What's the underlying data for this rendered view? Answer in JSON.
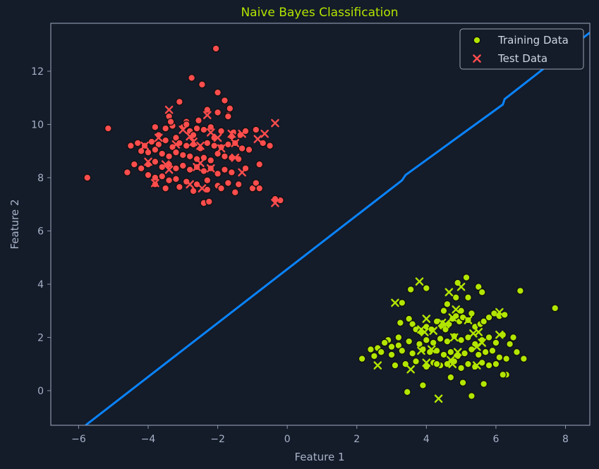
{
  "chart_data": {
    "type": "scatter",
    "title": "Naive Bayes Classification",
    "xlabel": "Feature 1",
    "ylabel": "Feature 2",
    "xlim": [
      -6.8,
      8.7
    ],
    "ylim": [
      -1.3,
      13.8
    ],
    "xticks": [
      "−6",
      "−4",
      "−2",
      "0",
      "2",
      "4",
      "6",
      "8"
    ],
    "xtick_values": [
      -6,
      -4,
      -2,
      0,
      2,
      4,
      6,
      8
    ],
    "yticks": [
      "0",
      "2",
      "4",
      "6",
      "8",
      "10",
      "12"
    ],
    "ytick_values": [
      0,
      2,
      4,
      6,
      8,
      10,
      12
    ],
    "grid": false,
    "legend_position": "top-right",
    "colors": {
      "background": "#141b29",
      "axes": "#8a96aa",
      "class_0": "#ff4d4d",
      "class_1": "#b2e600",
      "boundary": "#0a84ff"
    },
    "legend": [
      {
        "label": "Training Data",
        "marker": "circle"
      },
      {
        "label": "Test Data",
        "marker": "x"
      }
    ],
    "decision_boundary": {
      "x": [
        -5.8,
        3.3,
        3.4,
        6.2,
        6.25,
        8.7
      ],
      "y": [
        -1.3,
        7.9,
        8.1,
        10.75,
        10.95,
        13.45
      ]
    },
    "series": [
      {
        "name": "Training Data",
        "class": 0,
        "marker": "circle",
        "x": [
          -5.75,
          -5.15,
          -2.05,
          -2.75,
          -2.45,
          -2.0,
          -1.8,
          -3.1,
          -1.65,
          -3.4,
          -2.3,
          -2.0,
          -1.7,
          -2.9,
          -2.55,
          -3.8,
          -3.5,
          -3.3,
          -3.0,
          -2.8,
          -2.6,
          -2.4,
          -2.2,
          -1.9,
          -1.55,
          -1.35,
          -1.2,
          -3.7,
          -3.2,
          -2.7,
          -2.1,
          -1.6,
          -4.3,
          -4.1,
          -3.9,
          -3.7,
          -3.5,
          -3.3,
          -3.1,
          -2.9,
          -2.7,
          -2.5,
          -2.3,
          -2.1,
          -1.9,
          -1.7,
          -1.5,
          -1.3,
          -0.9,
          -4.5,
          -4.2,
          -4.0,
          -3.8,
          -3.6,
          -3.4,
          -3.2,
          -3.0,
          -2.8,
          -2.6,
          -2.4,
          -2.2,
          -2.0,
          -1.8,
          -1.6,
          -1.4,
          -1.1,
          -0.7,
          -4.4,
          -4.2,
          -4.0,
          -3.8,
          -3.6,
          -3.4,
          -3.2,
          -3.0,
          -2.8,
          -2.6,
          -2.4,
          -2.2,
          -2.0,
          -1.8,
          -1.6,
          -1.2,
          -0.8,
          -0.5,
          -4.0,
          -3.8,
          -3.6,
          -3.4,
          -3.2,
          -2.9,
          -2.6,
          -2.3,
          -2.0,
          -1.7,
          -1.4,
          -1.0,
          -3.8,
          -3.5,
          -3.1,
          -2.7,
          -2.3,
          -1.9,
          -1.5,
          -0.9,
          -0.8,
          -2.4,
          -2.25,
          -0.2,
          -0.35,
          -3.35,
          -1.7,
          -2.9,
          -4.6
        ],
        "y": [
          8.0,
          9.85,
          12.85,
          11.75,
          11.5,
          11.2,
          10.9,
          10.85,
          10.6,
          10.3,
          10.55,
          10.45,
          10.35,
          10.1,
          10.15,
          9.9,
          9.85,
          9.95,
          9.9,
          9.75,
          9.85,
          9.8,
          9.9,
          9.75,
          9.7,
          9.6,
          9.75,
          9.6,
          9.5,
          9.6,
          9.5,
          9.55,
          9.3,
          9.2,
          9.35,
          9.25,
          9.4,
          9.15,
          9.3,
          9.2,
          9.25,
          9.1,
          9.3,
          9.2,
          9.15,
          9.25,
          9.3,
          9.1,
          9.8,
          9.2,
          9.0,
          8.95,
          9.05,
          8.9,
          8.8,
          8.95,
          8.85,
          8.8,
          8.7,
          8.75,
          8.65,
          8.9,
          8.8,
          8.75,
          8.7,
          9.05,
          9.3,
          8.5,
          8.35,
          8.5,
          8.6,
          8.4,
          8.5,
          8.35,
          8.45,
          8.3,
          8.4,
          8.25,
          8.35,
          8.15,
          8.3,
          8.2,
          8.35,
          8.5,
          9.2,
          8.1,
          8.0,
          8.05,
          7.9,
          7.95,
          7.85,
          7.75,
          7.9,
          7.7,
          7.8,
          7.75,
          7.6,
          7.75,
          7.6,
          7.65,
          7.5,
          7.55,
          7.6,
          7.45,
          7.8,
          7.6,
          7.05,
          7.1,
          7.15,
          7.2,
          10.1,
          10.3,
          10.0,
          8.2
        ]
      },
      {
        "name": "Training Data",
        "class": 1,
        "marker": "circle",
        "x": [
          7.7,
          6.7,
          6.8,
          2.15,
          2.4,
          2.9,
          3.2,
          3.25,
          3.5,
          3.6,
          3.7,
          3.85,
          4.0,
          4.15,
          4.3,
          4.45,
          4.55,
          4.65,
          4.75,
          4.85,
          4.95,
          5.05,
          5.2,
          5.3,
          5.4,
          5.55,
          5.65,
          5.8,
          5.95,
          6.1,
          6.25,
          6.5,
          2.6,
          2.8,
          3.0,
          3.2,
          3.5,
          3.8,
          4.0,
          4.2,
          4.4,
          4.6,
          4.8,
          5.0,
          5.2,
          5.4,
          5.6,
          5.8,
          6.0,
          6.2,
          6.4,
          2.5,
          2.7,
          3.0,
          3.3,
          3.6,
          3.9,
          4.1,
          4.3,
          4.5,
          4.7,
          4.9,
          5.1,
          5.3,
          5.5,
          5.7,
          5.9,
          6.1,
          6.3,
          6.6,
          3.1,
          3.4,
          3.7,
          4.0,
          4.2,
          4.4,
          4.6,
          4.8,
          5.0,
          5.2,
          5.4,
          5.6,
          5.8,
          6.0,
          6.3,
          3.45,
          3.9,
          4.3,
          4.7,
          5.05,
          5.3,
          5.65,
          6.2,
          5.15,
          5.5,
          4.6,
          4.9,
          5.2,
          5.6,
          4.0,
          4.5,
          3.55,
          3.3,
          4.85,
          5.0
        ],
        "y": [
          3.1,
          3.75,
          1.2,
          1.2,
          1.55,
          1.9,
          2.0,
          2.55,
          2.7,
          2.5,
          2.3,
          2.2,
          2.4,
          2.3,
          2.6,
          2.4,
          2.3,
          2.5,
          2.7,
          2.8,
          2.6,
          2.75,
          2.65,
          2.9,
          2.4,
          2.5,
          2.6,
          2.75,
          2.9,
          2.8,
          2.85,
          2.0,
          1.6,
          1.8,
          1.65,
          1.7,
          1.85,
          1.75,
          1.9,
          1.8,
          1.95,
          1.85,
          2.05,
          1.9,
          2.0,
          1.75,
          1.9,
          2.0,
          1.8,
          2.1,
          1.75,
          1.3,
          1.45,
          1.35,
          1.5,
          1.4,
          1.55,
          1.45,
          1.5,
          1.35,
          1.45,
          1.3,
          1.4,
          1.55,
          1.35,
          1.45,
          1.5,
          1.25,
          1.2,
          1.45,
          0.95,
          1.0,
          1.1,
          0.9,
          1.05,
          0.95,
          1.0,
          1.1,
          0.85,
          1.0,
          0.9,
          1.05,
          0.95,
          1.0,
          0.6,
          -0.05,
          0.2,
          1.0,
          0.5,
          0.3,
          -0.2,
          0.25,
          0.6,
          4.25,
          3.9,
          3.25,
          4.05,
          3.5,
          3.7,
          3.85,
          3.0,
          3.8,
          3.3,
          3.5,
          3.0
        ]
      },
      {
        "name": "Test Data",
        "class": 0,
        "marker": "x",
        "x": [
          -3.4,
          -2.3,
          -3.0,
          -2.2,
          -1.6,
          -1.3,
          -3.7,
          -2.8,
          -2.0,
          -2.7,
          -4.1,
          -3.2,
          -2.5,
          -1.9,
          -1.5,
          -0.35,
          -0.65,
          -0.85,
          -3.5,
          -2.5,
          -1.3,
          -0.35,
          -4.0,
          -3.4,
          -2.6,
          -2.2,
          -1.5,
          -3.8,
          -2.8,
          -2.45
        ],
        "y": [
          10.55,
          10.35,
          9.8,
          9.7,
          9.65,
          9.65,
          9.5,
          9.55,
          9.5,
          9.35,
          9.2,
          9.25,
          9.2,
          9.1,
          9.3,
          10.05,
          9.65,
          9.45,
          8.5,
          8.55,
          8.2,
          7.05,
          8.6,
          8.3,
          8.4,
          8.35,
          8.75,
          7.8,
          7.75,
          7.6
        ]
      },
      {
        "name": "Test Data",
        "class": 1,
        "marker": "x",
        "x": [
          3.8,
          4.65,
          5.0,
          3.1,
          4.85,
          6.1,
          3.95,
          4.55,
          4.75,
          5.35,
          3.85,
          4.0,
          4.2,
          4.45,
          4.8,
          5.2,
          5.5,
          6.1,
          5.6,
          3.85,
          4.15,
          4.9,
          5.45,
          2.6,
          3.55,
          4.0,
          4.75,
          5.45,
          4.35,
          4.7
        ],
        "y": [
          4.1,
          3.7,
          3.9,
          3.3,
          3.05,
          2.95,
          2.2,
          2.5,
          2.75,
          2.15,
          2.3,
          2.7,
          2.25,
          2.55,
          2.0,
          2.65,
          2.2,
          2.1,
          1.8,
          1.5,
          1.55,
          1.45,
          1.65,
          0.95,
          0.8,
          1.05,
          1.0,
          0.95,
          -0.3,
          1.15
        ]
      }
    ]
  }
}
